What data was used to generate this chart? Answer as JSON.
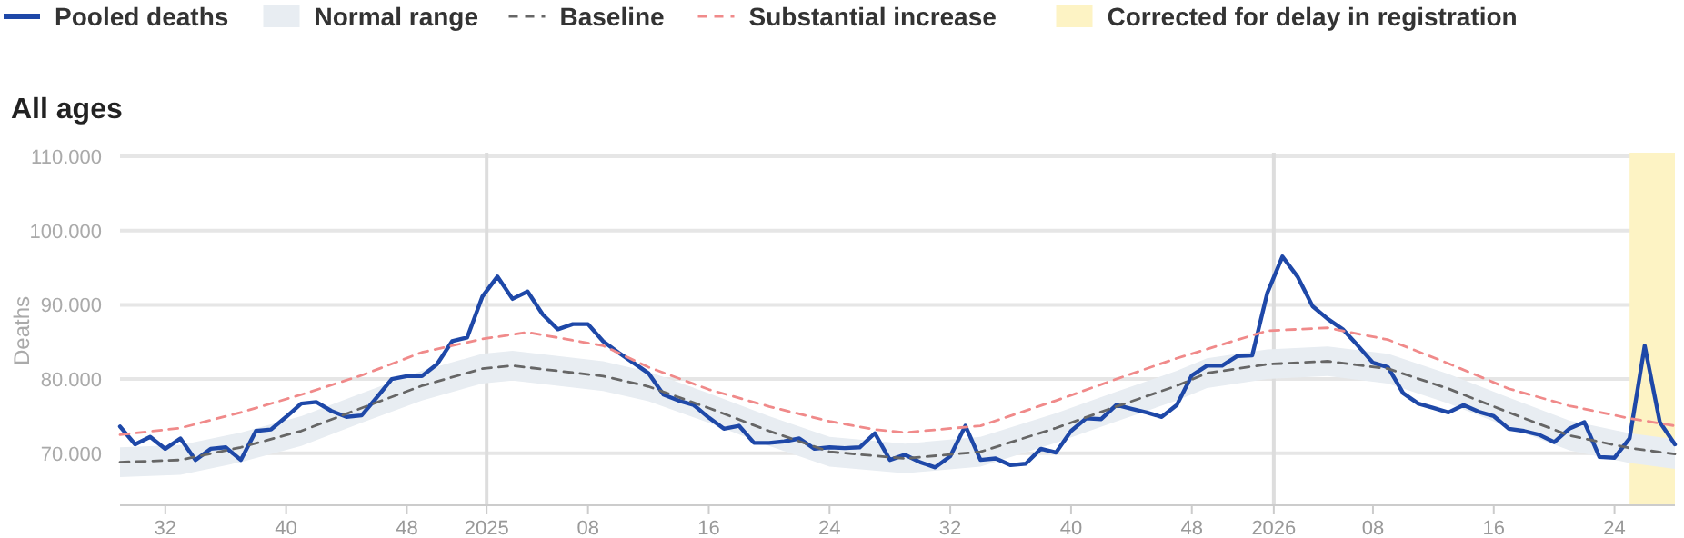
{
  "chart_data": {
    "type": "line",
    "title": "All ages",
    "ylabel": "Deaths",
    "legend": "top",
    "grid": "y",
    "xlim": [
      "2024-07-15",
      "2026-07-06"
    ],
    "ylim": [
      63000,
      110000
    ],
    "xticks": [
      {
        "value": "2024-08-05",
        "label": "32"
      },
      {
        "value": "2024-09-30",
        "label": "40"
      },
      {
        "value": "2024-11-25",
        "label": "48"
      },
      {
        "value": "2025-01-01",
        "label": "2025"
      },
      {
        "value": "2025-02-17",
        "label": "08"
      },
      {
        "value": "2025-04-14",
        "label": "16"
      },
      {
        "value": "2025-06-09",
        "label": "24"
      },
      {
        "value": "2025-08-04",
        "label": "32"
      },
      {
        "value": "2025-09-29",
        "label": "40"
      },
      {
        "value": "2025-11-24",
        "label": "48"
      },
      {
        "value": "2026-01-01",
        "label": "2026"
      },
      {
        "value": "2026-02-16",
        "label": "08"
      },
      {
        "value": "2026-04-13",
        "label": "16"
      },
      {
        "value": "2026-06-08",
        "label": "24"
      }
    ],
    "yticks": [
      {
        "value": 70000,
        "label": "70.000"
      },
      {
        "value": 80000,
        "label": "80.000"
      },
      {
        "value": 90000,
        "label": "90.000"
      },
      {
        "value": 100000,
        "label": "100.000"
      },
      {
        "value": 110000,
        "label": "110.000"
      }
    ],
    "ref_lines": [
      {
        "axis": "x",
        "value": "2025-01-01",
        "color": "#dddddd"
      },
      {
        "axis": "x",
        "value": "2026-01-01",
        "color": "#dddddd"
      }
    ],
    "bands": [
      {
        "axis": "x",
        "from": "2026-06-15",
        "to": "2026-07-06",
        "label": "Corrected for delay in registration",
        "color": "#fdf3c4"
      }
    ],
    "series": [
      {
        "name": "Pooled deaths",
        "color": "#1e48a8",
        "line_style": "solid",
        "x": [
          "2024-07-15",
          "2024-07-22",
          "2024-07-29",
          "2024-08-05",
          "2024-08-12",
          "2024-08-19",
          "2024-08-26",
          "2024-09-02",
          "2024-09-09",
          "2024-09-16",
          "2024-09-23",
          "2024-09-30",
          "2024-10-07",
          "2024-10-14",
          "2024-10-21",
          "2024-10-28",
          "2024-11-04",
          "2024-11-11",
          "2024-11-18",
          "2024-11-25",
          "2024-12-02",
          "2024-12-09",
          "2024-12-16",
          "2024-12-23",
          "2024-12-30",
          "2025-01-06",
          "2025-01-13",
          "2025-01-20",
          "2025-01-27",
          "2025-02-03",
          "2025-02-10",
          "2025-02-17",
          "2025-02-24",
          "2025-03-03",
          "2025-03-10",
          "2025-03-17",
          "2025-03-24",
          "2025-03-31",
          "2025-04-07",
          "2025-04-14",
          "2025-04-21",
          "2025-04-28",
          "2025-05-05",
          "2025-05-12",
          "2025-05-19",
          "2025-05-26",
          "2025-06-02",
          "2025-06-09",
          "2025-06-16",
          "2025-06-23",
          "2025-06-30",
          "2025-07-07",
          "2025-07-14",
          "2025-07-21",
          "2025-07-28",
          "2025-08-04",
          "2025-08-11",
          "2025-08-18",
          "2025-08-25",
          "2025-09-01",
          "2025-09-08",
          "2025-09-15",
          "2025-09-22",
          "2025-09-29",
          "2025-10-06",
          "2025-10-13",
          "2025-10-20",
          "2025-10-27",
          "2025-11-03",
          "2025-11-10",
          "2025-11-17",
          "2025-11-24",
          "2025-12-01",
          "2025-12-08",
          "2025-12-15",
          "2025-12-22",
          "2025-12-29",
          "2026-01-05",
          "2026-01-12",
          "2026-01-19",
          "2026-01-26",
          "2026-02-02",
          "2026-02-09",
          "2026-02-16",
          "2026-02-23",
          "2026-03-02",
          "2026-03-09",
          "2026-03-16",
          "2026-03-23",
          "2026-03-30",
          "2026-04-06",
          "2026-04-13",
          "2026-04-20",
          "2026-04-27",
          "2026-05-04",
          "2026-05-11",
          "2026-05-18",
          "2026-05-25",
          "2026-06-01",
          "2026-06-08",
          "2026-06-15",
          "2026-06-22",
          "2026-06-29",
          "2026-07-06"
        ],
        "values": [
          73600,
          71200,
          72200,
          70600,
          72000,
          69100,
          70600,
          70800,
          69100,
          73000,
          73200,
          74900,
          76700,
          76900,
          75700,
          74900,
          75100,
          77500,
          80000,
          80400,
          80400,
          82000,
          85100,
          85600,
          91100,
          93800,
          90800,
          91800,
          88700,
          86700,
          87400,
          87400,
          85100,
          83600,
          82200,
          80800,
          77900,
          77100,
          76500,
          74800,
          73300,
          73700,
          71400,
          71400,
          71600,
          72000,
          70600,
          70800,
          70700,
          70800,
          72700,
          69100,
          69800,
          68800,
          68100,
          69600,
          73700,
          69100,
          69300,
          68400,
          68600,
          70600,
          70100,
          73000,
          74700,
          74600,
          76500,
          76000,
          75500,
          74900,
          76500,
          80500,
          81800,
          81800,
          83100,
          83200,
          91600,
          96500,
          93800,
          89800,
          88100,
          86700,
          84500,
          82200,
          81600,
          78100,
          76700,
          76100,
          75500,
          76500,
          75600,
          75000,
          73300,
          73000,
          72500,
          71500,
          73300,
          74200,
          69500,
          69400,
          72000,
          84500,
          74200,
          71200
        ]
      },
      {
        "name": "Normal range",
        "color": "#e8edf2",
        "x": [
          "2024-07-15",
          "2024-08-12",
          "2024-09-09",
          "2024-10-07",
          "2024-11-04",
          "2024-12-02",
          "2024-12-30",
          "2025-01-13",
          "2025-02-24",
          "2025-03-17",
          "2025-04-14",
          "2025-05-12",
          "2025-06-09",
          "2025-07-14",
          "2025-08-18",
          "2025-09-22",
          "2025-10-20",
          "2025-11-17",
          "2025-12-01",
          "2025-12-29",
          "2026-01-26",
          "2026-02-23",
          "2026-03-23",
          "2026-04-20",
          "2026-05-18",
          "2026-06-15",
          "2026-07-06"
        ],
        "lower": [
          66800,
          67100,
          68800,
          71000,
          74100,
          77100,
          79400,
          79800,
          78400,
          77000,
          74100,
          71000,
          68200,
          67300,
          68200,
          71400,
          74300,
          77100,
          78800,
          80000,
          80400,
          79400,
          76700,
          73500,
          70400,
          68700,
          67900
        ],
        "upper": [
          70800,
          71100,
          72800,
          75000,
          78100,
          81100,
          83400,
          83800,
          82400,
          81000,
          78100,
          75000,
          72200,
          71300,
          72200,
          75400,
          78300,
          81100,
          82800,
          84000,
          84400,
          83400,
          80700,
          77500,
          74400,
          72700,
          71900
        ],
        "values": [
          null,
          null,
          null,
          null,
          null,
          null,
          null,
          null,
          null,
          null,
          null,
          null,
          null,
          null,
          null,
          null,
          null,
          null,
          null,
          null,
          null,
          null,
          null,
          null,
          null,
          null,
          null
        ]
      },
      {
        "name": "Baseline",
        "color": "#666666",
        "line_style": "dashed",
        "x": [
          "2024-07-15",
          "2024-08-12",
          "2024-09-09",
          "2024-10-07",
          "2024-11-04",
          "2024-12-02",
          "2024-12-30",
          "2025-01-13",
          "2025-02-24",
          "2025-03-17",
          "2025-04-14",
          "2025-05-12",
          "2025-06-09",
          "2025-07-14",
          "2025-08-18",
          "2025-09-22",
          "2025-10-20",
          "2025-11-17",
          "2025-12-01",
          "2025-12-29",
          "2026-01-26",
          "2026-02-23",
          "2026-03-23",
          "2026-04-20",
          "2026-05-18",
          "2026-06-15",
          "2026-07-06"
        ],
        "values": [
          68800,
          69100,
          70800,
          73000,
          76100,
          79100,
          81400,
          81800,
          80400,
          79000,
          76100,
          73000,
          70200,
          69300,
          70200,
          73400,
          76300,
          79100,
          80800,
          82000,
          82400,
          81400,
          78700,
          75500,
          72400,
          70700,
          69900
        ]
      },
      {
        "name": "Substantial increase",
        "color": "#f08a8a",
        "line_style": "dashed",
        "x": [
          "2024-07-15",
          "2024-08-12",
          "2024-09-09",
          "2024-10-07",
          "2024-11-04",
          "2024-12-02",
          "2024-12-30",
          "2025-01-20",
          "2025-02-24",
          "2025-03-17",
          "2025-04-14",
          "2025-05-12",
          "2025-06-09",
          "2025-06-30",
          "2025-07-14",
          "2025-08-18",
          "2025-09-22",
          "2025-10-20",
          "2025-11-17",
          "2025-12-29",
          "2026-01-26",
          "2026-02-23",
          "2026-03-23",
          "2026-04-20",
          "2026-05-18",
          "2026-06-15",
          "2026-07-06"
        ],
        "values": [
          72500,
          73400,
          75500,
          77900,
          80500,
          83600,
          85400,
          86300,
          84500,
          81600,
          78600,
          76300,
          74300,
          73200,
          72800,
          73700,
          77100,
          80000,
          82800,
          86500,
          86900,
          85300,
          82100,
          78700,
          76400,
          74700,
          73700
        ]
      }
    ]
  }
}
